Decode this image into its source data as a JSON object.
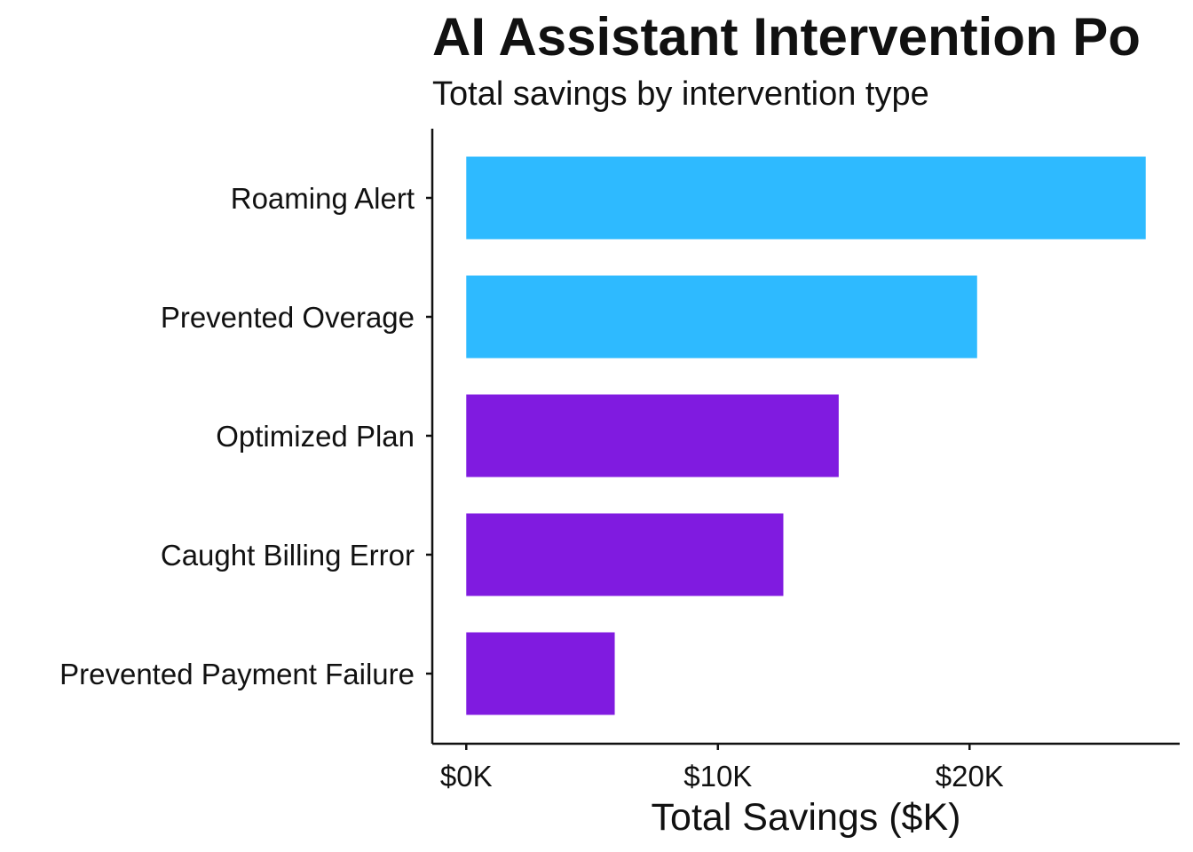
{
  "chart_data": {
    "type": "bar",
    "orientation": "horizontal",
    "title": "AI Assistant Intervention Po",
    "subtitle": "Total savings by intervention type",
    "xlabel": "Total Savings ($K)",
    "ylabel": "",
    "categories": [
      "Roaming Alert",
      "Prevented Overage",
      "Optimized Plan",
      "Caught Billing Error",
      "Prevented Payment Failure"
    ],
    "values": [
      27000,
      20300,
      14800,
      12600,
      5900
    ],
    "colors": [
      "#2EBAFF",
      "#2EBAFF",
      "#801BE0",
      "#801BE0",
      "#801BE0"
    ],
    "xlim": [
      -1350,
      28350
    ],
    "x_ticks": [
      0,
      10000,
      20000
    ],
    "x_tick_labels": [
      "$0K",
      "$10K",
      "$20K"
    ],
    "grid": false,
    "legend": "none"
  }
}
